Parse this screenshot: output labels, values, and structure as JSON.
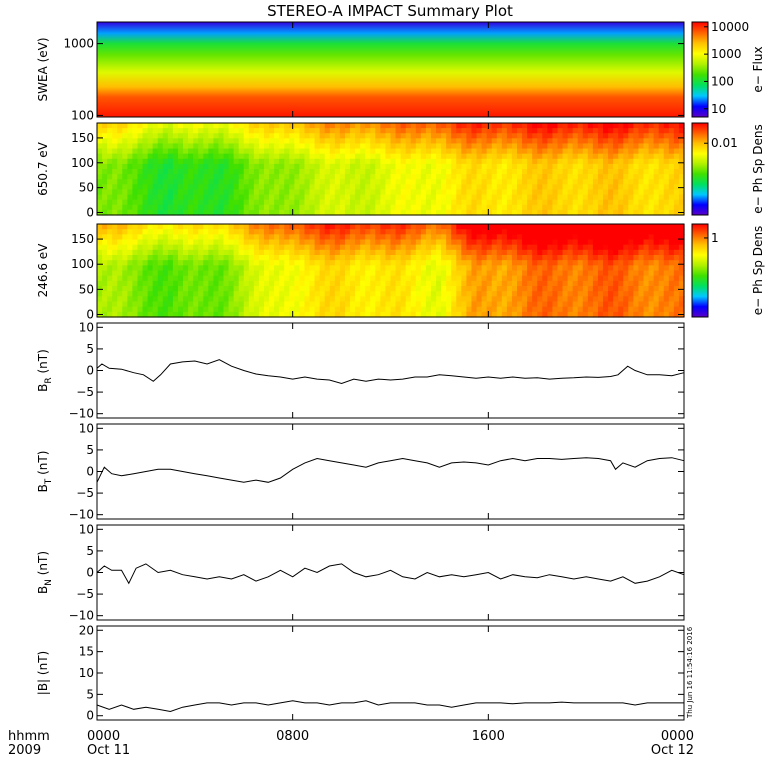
{
  "title": "STEREO-A IMPACT Summary Plot",
  "timestamp": "Thu Jun 16 11:54:16 2016",
  "time_axis": {
    "row1_label": "hhmm",
    "row2_label": "2009",
    "ticks": [
      {
        "hours": 0,
        "time": "0000",
        "date": "Oct 11"
      },
      {
        "hours": 8,
        "time": "0800",
        "date": ""
      },
      {
        "hours": 16,
        "time": "1600",
        "date": ""
      },
      {
        "hours": 24,
        "time": "0000",
        "date": "Oct 12"
      }
    ],
    "range_hours": [
      0,
      24
    ]
  },
  "colors": {
    "spectrogram_scale": [
      "#5a00c8",
      "#0000ff",
      "#00c8ff",
      "#00e060",
      "#40e000",
      "#b0f000",
      "#ffff00",
      "#ffc000",
      "#ff6000",
      "#ff0000"
    ],
    "trace": "#000000"
  },
  "chart_data": [
    {
      "type": "heatmap",
      "name": "swea",
      "ylabel": "SWEA (eV)",
      "yscale": "log",
      "ylim": [
        95,
        2000
      ],
      "yticks": [
        {
          "v": 100,
          "label": "100"
        },
        {
          "v": 1000,
          "label": "1000"
        }
      ],
      "colorbar": {
        "label": "e− Flux",
        "scale": "log",
        "ticks": [
          {
            "v": 10,
            "label": "10"
          },
          {
            "v": 100,
            "label": "100"
          },
          {
            "v": 1000,
            "label": "1000"
          },
          {
            "v": 10000,
            "label": "10000"
          }
        ],
        "range": [
          5,
          15000
        ]
      },
      "z_description_by_energy": [
        [
          100,
          0.97
        ],
        [
          180,
          0.9
        ],
        [
          250,
          0.78
        ],
        [
          400,
          0.62
        ],
        [
          700,
          0.48
        ],
        [
          1000,
          0.38
        ],
        [
          1400,
          0.2
        ],
        [
          2000,
          0.05
        ]
      ]
    },
    {
      "type": "heatmap",
      "name": "pad650",
      "ylabel": "650.7 eV",
      "ylim": [
        -5,
        180
      ],
      "yticks": [
        {
          "v": 0,
          "label": "0"
        },
        {
          "v": 50,
          "label": "50"
        },
        {
          "v": 100,
          "label": "100"
        },
        {
          "v": 150,
          "label": "150"
        }
      ],
      "colorbar": {
        "label": "e− Ph Sp Dens",
        "ticks": [
          {
            "v": 0.78,
            "label": "0.01"
          }
        ]
      },
      "level_by_hour": [
        [
          0,
          0.5
        ],
        [
          2,
          0.45
        ],
        [
          3,
          0.38
        ],
        [
          5,
          0.42
        ],
        [
          8,
          0.55
        ],
        [
          10,
          0.6
        ],
        [
          12,
          0.62
        ],
        [
          15,
          0.7
        ],
        [
          18,
          0.74
        ],
        [
          21,
          0.75
        ],
        [
          24,
          0.72
        ]
      ]
    },
    {
      "type": "heatmap",
      "name": "pad246",
      "ylabel": "246.6 eV",
      "ylim": [
        -5,
        180
      ],
      "yticks": [
        {
          "v": 0,
          "label": "0"
        },
        {
          "v": 50,
          "label": "50"
        },
        {
          "v": 100,
          "label": "100"
        },
        {
          "v": 150,
          "label": "150"
        }
      ],
      "colorbar": {
        "label": "e− Ph Sp Dens",
        "ticks": [
          {
            "v": 0.85,
            "label": "1"
          }
        ]
      },
      "level_by_hour": [
        [
          0,
          0.55
        ],
        [
          2,
          0.5
        ],
        [
          3,
          0.45
        ],
        [
          5,
          0.5
        ],
        [
          8,
          0.68
        ],
        [
          10,
          0.72
        ],
        [
          12,
          0.7
        ],
        [
          14,
          0.65
        ],
        [
          15.5,
          0.8
        ],
        [
          18,
          0.86
        ],
        [
          21,
          0.88
        ],
        [
          24,
          0.84
        ]
      ]
    },
    {
      "type": "line",
      "name": "br",
      "ylabel": "B",
      "ylabel_sub": "R",
      "ylabel_unit": " (nT)",
      "ylim": [
        -11,
        11
      ],
      "yticks": [
        {
          "v": -10,
          "label": "−10"
        },
        {
          "v": -5,
          "label": "−5"
        },
        {
          "v": 0,
          "label": "0"
        },
        {
          "v": 5,
          "label": "5"
        },
        {
          "v": 10,
          "label": "10"
        }
      ],
      "x": [
        0,
        0.2,
        0.5,
        1,
        1.5,
        1.9,
        2.3,
        2.6,
        3,
        3.5,
        4,
        4.5,
        5,
        5.5,
        6,
        6.5,
        7,
        7.5,
        8,
        8.5,
        9,
        9.5,
        10,
        10.5,
        11,
        11.5,
        12,
        12.5,
        13,
        13.5,
        14,
        14.5,
        15,
        15.5,
        16,
        16.5,
        17,
        17.5,
        18,
        18.5,
        19,
        19.5,
        20,
        20.5,
        21,
        21.3,
        21.7,
        22,
        22.5,
        23,
        23.5,
        24
      ],
      "y": [
        0.5,
        1.5,
        0.5,
        0.3,
        -0.5,
        -1.0,
        -2.5,
        -1.0,
        1.5,
        2.0,
        2.2,
        1.5,
        2.5,
        1.0,
        0.0,
        -0.8,
        -1.2,
        -1.5,
        -2.0,
        -1.5,
        -2.0,
        -2.2,
        -3.0,
        -2.0,
        -2.5,
        -2.0,
        -2.2,
        -2.0,
        -1.5,
        -1.5,
        -1.0,
        -1.2,
        -1.5,
        -1.8,
        -1.5,
        -1.8,
        -1.5,
        -1.8,
        -1.7,
        -2.0,
        -1.8,
        -1.7,
        -1.5,
        -1.6,
        -1.4,
        -1.0,
        1.0,
        0.0,
        -1.0,
        -1.0,
        -1.2,
        -0.5
      ]
    },
    {
      "type": "line",
      "name": "bt",
      "ylabel": "B",
      "ylabel_sub": "T",
      "ylabel_unit": " (nT)",
      "ylim": [
        -11,
        11
      ],
      "yticks": [
        {
          "v": -10,
          "label": "−10"
        },
        {
          "v": -5,
          "label": "−5"
        },
        {
          "v": 0,
          "label": "0"
        },
        {
          "v": 5,
          "label": "5"
        },
        {
          "v": 10,
          "label": "10"
        }
      ],
      "x": [
        0,
        0.3,
        0.6,
        1,
        1.5,
        2,
        2.5,
        3,
        3.5,
        4,
        4.5,
        5,
        5.5,
        6,
        6.5,
        7,
        7.5,
        8,
        8.5,
        9,
        9.5,
        10,
        10.5,
        11,
        11.5,
        12,
        12.5,
        13,
        13.5,
        14,
        14.5,
        15,
        15.5,
        16,
        16.5,
        17,
        17.5,
        18,
        18.5,
        19,
        19.5,
        20,
        20.5,
        21,
        21.2,
        21.5,
        22,
        22.5,
        23,
        23.5,
        24
      ],
      "y": [
        -2.5,
        1.0,
        -0.5,
        -1.0,
        -0.5,
        0.0,
        0.5,
        0.5,
        0.0,
        -0.5,
        -1.0,
        -1.5,
        -2.0,
        -2.5,
        -2.0,
        -2.5,
        -1.5,
        0.5,
        2.0,
        3.0,
        2.5,
        2.0,
        1.5,
        1.0,
        2.0,
        2.5,
        3.0,
        2.5,
        2.0,
        1.0,
        2.0,
        2.2,
        2.0,
        1.5,
        2.5,
        3.0,
        2.5,
        3.0,
        3.0,
        2.8,
        3.0,
        3.2,
        3.0,
        2.5,
        0.5,
        2.0,
        1.0,
        2.5,
        3.0,
        3.2,
        2.5
      ]
    },
    {
      "type": "line",
      "name": "bn",
      "ylabel": "B",
      "ylabel_sub": "N",
      "ylabel_unit": " (nT)",
      "ylim": [
        -11,
        11
      ],
      "yticks": [
        {
          "v": -10,
          "label": "−10"
        },
        {
          "v": -5,
          "label": "−5"
        },
        {
          "v": 0,
          "label": "0"
        },
        {
          "v": 5,
          "label": "5"
        },
        {
          "v": 10,
          "label": "10"
        }
      ],
      "x": [
        0,
        0.3,
        0.6,
        1,
        1.3,
        1.6,
        2,
        2.5,
        3,
        3.5,
        4,
        4.5,
        5,
        5.5,
        6,
        6.5,
        7,
        7.5,
        8,
        8.5,
        9,
        9.5,
        10,
        10.5,
        11,
        11.5,
        12,
        12.5,
        13,
        13.5,
        14,
        14.5,
        15,
        15.5,
        16,
        16.5,
        17,
        17.5,
        18,
        18.5,
        19,
        19.5,
        20,
        20.5,
        21,
        21.5,
        22,
        22.5,
        23,
        23.5,
        24
      ],
      "y": [
        0.0,
        1.5,
        0.5,
        0.5,
        -2.5,
        1.0,
        2.0,
        0.0,
        0.5,
        -0.5,
        -1.0,
        -1.5,
        -1.0,
        -1.5,
        -0.5,
        -2.0,
        -1.0,
        0.5,
        -1.0,
        1.0,
        0.0,
        1.5,
        2.0,
        0.0,
        -1.0,
        -0.5,
        0.5,
        -1.0,
        -1.5,
        0.0,
        -1.0,
        -0.5,
        -1.0,
        -0.5,
        0.0,
        -1.5,
        -0.5,
        -1.0,
        -1.2,
        -0.5,
        -1.0,
        -1.5,
        -1.0,
        -1.5,
        -2.0,
        -1.0,
        -2.5,
        -2.0,
        -1.0,
        0.5,
        -0.5
      ]
    },
    {
      "type": "line",
      "name": "bmag",
      "ylabel": "|B|",
      "ylabel_sub": "",
      "ylabel_unit": " (nT)",
      "ylim": [
        -1,
        21
      ],
      "yticks": [
        {
          "v": 0,
          "label": "0"
        },
        {
          "v": 5,
          "label": "5"
        },
        {
          "v": 10,
          "label": "10"
        },
        {
          "v": 15,
          "label": "15"
        },
        {
          "v": 20,
          "label": "20"
        }
      ],
      "x": [
        0,
        0.5,
        1,
        1.5,
        2,
        2.5,
        3,
        3.5,
        4,
        4.5,
        5,
        5.5,
        6,
        6.5,
        7,
        7.5,
        8,
        8.5,
        9,
        9.5,
        10,
        10.5,
        11,
        11.5,
        12,
        12.5,
        13,
        13.5,
        14,
        14.5,
        15,
        15.5,
        16,
        16.5,
        17,
        17.5,
        18,
        18.5,
        19,
        19.5,
        20,
        20.5,
        21,
        21.5,
        22,
        22.5,
        23,
        23.5,
        24
      ],
      "y": [
        2.5,
        1.5,
        2.5,
        1.5,
        2.0,
        1.5,
        1.0,
        2.0,
        2.5,
        3.0,
        3.0,
        2.5,
        3.0,
        3.0,
        2.5,
        3.0,
        3.5,
        3.0,
        3.0,
        2.5,
        3.0,
        3.0,
        3.5,
        2.5,
        3.0,
        3.0,
        3.0,
        2.5,
        2.5,
        2.0,
        2.5,
        3.0,
        3.0,
        3.0,
        2.8,
        3.0,
        3.0,
        3.0,
        3.2,
        3.0,
        3.0,
        3.0,
        3.0,
        3.0,
        2.5,
        3.0,
        3.0,
        3.0,
        3.0
      ]
    }
  ]
}
